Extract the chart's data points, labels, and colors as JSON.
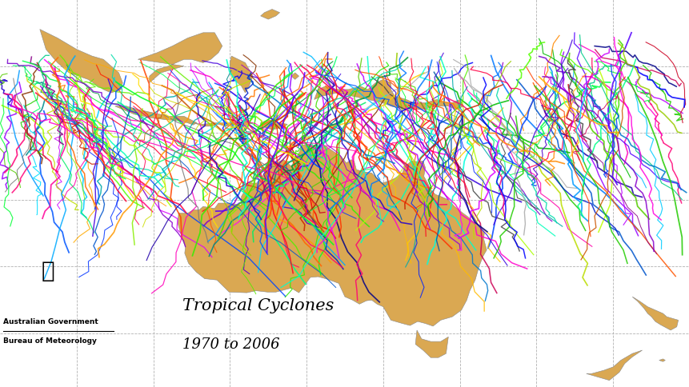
{
  "title": "Tropical Cyclones",
  "subtitle": "1970 to 2006",
  "attribution_line1": "Australian Government",
  "attribution_line2": "Bureau of Meteorology",
  "background_color": "#ffffff",
  "ocean_color": "#ffffff",
  "land_color": "#daa852",
  "grid_color": "#aaaaaa",
  "lon_min": 90,
  "lon_max": 180,
  "lat_min": -48,
  "lat_max": 10,
  "grid_lons": [
    100,
    110,
    120,
    130,
    140,
    150,
    160,
    170
  ],
  "grid_lats": [
    -40,
    -30,
    -20,
    -10,
    0
  ],
  "cyclone_colors": [
    "#ff0000",
    "#00bb00",
    "#0000ff",
    "#ff00ff",
    "#00aaaa",
    "#ff8800",
    "#8800cc",
    "#00cc88",
    "#ff0077",
    "#99cc00",
    "#0077ff",
    "#ff4400",
    "#44dd00",
    "#0044ff",
    "#ff0044",
    "#00ff44",
    "#4400dd",
    "#ffaa00",
    "#00ddaa",
    "#9900ff",
    "#ff00aa",
    "#aaff00",
    "#00aaff",
    "#ff6600",
    "#55ee00",
    "#0055ff",
    "#ff0066",
    "#00ee66",
    "#5500ff",
    "#ffcc00",
    "#00ffcc",
    "#cc00ff",
    "#ff00cc",
    "#bbdd00",
    "#00ccff",
    "#ff3300",
    "#33ee00",
    "#0033ff",
    "#ff0033",
    "#00ff33",
    "#3300dd",
    "#ff9900",
    "#88ee00",
    "#0099ff",
    "#ff0099",
    "#00ff88",
    "#9900cc",
    "#444444",
    "#777777",
    "#aaaaaa",
    "#ff5500",
    "#55ff00",
    "#0055cc",
    "#ff0055",
    "#00ff55",
    "#5500cc",
    "#ffbb00",
    "#00ffbb",
    "#bb00ff",
    "#ff00bb",
    "#bbff00",
    "#00bbff",
    "#883300",
    "#009933",
    "#000088",
    "#880088",
    "#008888",
    "#ff2200",
    "#22ee00",
    "#0022ff",
    "#ff0022",
    "#00ff22",
    "#2200cc",
    "#ff7700",
    "#66ee00",
    "#0077cc",
    "#ff0077",
    "#00ff66",
    "#7700cc",
    "#ffdd00",
    "#00ffdd",
    "#dd00ff",
    "#ff00dd",
    "#ccdd00",
    "#00ddff",
    "#cc2200",
    "#22cc00",
    "#0022cc",
    "#cc0022",
    "#22cc00",
    "#2200aa",
    "#cc5500",
    "#55cc00",
    "#0055aa",
    "#cc0055"
  ],
  "seed": 42
}
